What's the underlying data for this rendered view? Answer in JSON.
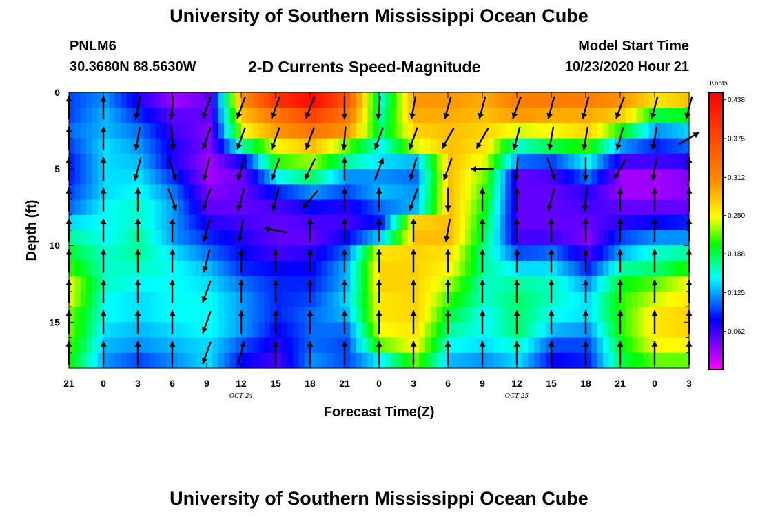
{
  "header": {
    "title": "University of Southern Mississippi Ocean Cube",
    "station_id": "PNLM6",
    "station_coords": "30.3680N 88.5630W",
    "subtitle": "2-D Currents Speed-Magnitude",
    "model_start_label": "Model Start Time",
    "model_start_value": "10/23/2020 Hour 21"
  },
  "footer": {
    "title": "University of Southern Mississippi Ocean Cube"
  },
  "chart_data": {
    "type": "heatmap",
    "title": "2-D Currents Speed-Magnitude",
    "xlabel": "Forecast Time(Z)",
    "ylabel": "Depth (ft)",
    "x_tick_labels": [
      "21",
      "0",
      "3",
      "6",
      "9",
      "12",
      "15",
      "18",
      "21",
      "0",
      "3",
      "6",
      "9",
      "12",
      "15",
      "18",
      "21",
      "0",
      "3"
    ],
    "date_labels": [
      {
        "label": "OCT 24",
        "at_tick_index": 5
      },
      {
        "label": "OCT 25",
        "at_tick_index": 13
      }
    ],
    "y_ticks": [
      0,
      5,
      10,
      15
    ],
    "ylim": [
      0,
      18
    ],
    "colorbar": {
      "label": "Knots",
      "min": 0.0,
      "max": 0.45,
      "tick_labels": [
        "0.438",
        "0.375",
        "0.312",
        "0.250",
        "0.188",
        "0.125",
        "0.062"
      ],
      "tick_values": [
        0.438,
        0.375,
        0.312,
        0.25,
        0.188,
        0.125,
        0.062
      ]
    },
    "depth_rows_ft": [
      0.5,
      1.5,
      2.5,
      3.5,
      4.5,
      5.5,
      6.5,
      7.5,
      8.5,
      9.5,
      10.5,
      11.5,
      12.5,
      13.5,
      14.5,
      15.5,
      16.5,
      17.5
    ],
    "speed_knots_columns": [
      {
        "hour": 0,
        "speed": [
          0.1,
          0.1,
          0.11,
          0.1,
          0.09,
          0.09,
          0.1,
          0.11,
          0.14,
          0.17,
          0.19,
          0.21,
          0.24,
          0.24,
          0.22,
          0.22,
          0.21,
          0.2
        ]
      },
      {
        "hour": 3,
        "speed": [
          0.12,
          0.13,
          0.13,
          0.14,
          0.14,
          0.14,
          0.14,
          0.15,
          0.15,
          0.15,
          0.16,
          0.16,
          0.16,
          0.15,
          0.15,
          0.14,
          0.13,
          0.12
        ]
      },
      {
        "hour": 6,
        "speed": [
          0.07,
          0.09,
          0.11,
          0.12,
          0.13,
          0.14,
          0.15,
          0.16,
          0.16,
          0.17,
          0.17,
          0.16,
          0.15,
          0.14,
          0.14,
          0.13,
          0.12,
          0.1
        ]
      },
      {
        "hour": 9,
        "speed": [
          0.03,
          0.05,
          0.06,
          0.07,
          0.07,
          0.09,
          0.11,
          0.12,
          0.12,
          0.12,
          0.14,
          0.15,
          0.15,
          0.15,
          0.15,
          0.14,
          0.13,
          0.12
        ]
      },
      {
        "hour": 12,
        "speed": [
          0.05,
          0.05,
          0.04,
          0.04,
          0.03,
          0.03,
          0.04,
          0.05,
          0.07,
          0.09,
          0.11,
          0.13,
          0.14,
          0.15,
          0.15,
          0.15,
          0.14,
          0.14
        ]
      },
      {
        "hour": 15,
        "speed": [
          0.31,
          0.28,
          0.25,
          0.17,
          0.08,
          0.05,
          0.05,
          0.05,
          0.06,
          0.07,
          0.08,
          0.09,
          0.11,
          0.12,
          0.12,
          0.12,
          0.1,
          0.08
        ]
      },
      {
        "hour": 18,
        "speed": [
          0.4,
          0.33,
          0.3,
          0.25,
          0.21,
          0.15,
          0.09,
          0.06,
          0.05,
          0.05,
          0.06,
          0.08,
          0.09,
          0.09,
          0.09,
          0.08,
          0.07,
          0.06
        ]
      },
      {
        "hour": 21,
        "speed": [
          0.44,
          0.38,
          0.33,
          0.28,
          0.23,
          0.18,
          0.12,
          0.08,
          0.06,
          0.05,
          0.07,
          0.08,
          0.09,
          0.1,
          0.11,
          0.11,
          0.11,
          0.12
        ]
      },
      {
        "hour": 24,
        "speed": [
          0.36,
          0.33,
          0.3,
          0.22,
          0.17,
          0.12,
          0.1,
          0.07,
          0.06,
          0.08,
          0.11,
          0.13,
          0.13,
          0.14,
          0.13,
          0.11,
          0.1,
          0.1
        ]
      },
      {
        "hour": 27,
        "speed": [
          0.16,
          0.17,
          0.18,
          0.15,
          0.14,
          0.12,
          0.13,
          0.11,
          0.09,
          0.14,
          0.26,
          0.27,
          0.27,
          0.26,
          0.26,
          0.25,
          0.22,
          0.15
        ]
      },
      {
        "hour": 30,
        "speed": [
          0.3,
          0.29,
          0.27,
          0.24,
          0.13,
          0.11,
          0.12,
          0.13,
          0.27,
          0.28,
          0.27,
          0.27,
          0.27,
          0.27,
          0.27,
          0.26,
          0.25,
          0.22
        ]
      },
      {
        "hour": 33,
        "speed": [
          0.3,
          0.29,
          0.28,
          0.28,
          0.28,
          0.28,
          0.28,
          0.28,
          0.28,
          0.28,
          0.26,
          0.25,
          0.23,
          0.21,
          0.19,
          0.17,
          0.15,
          0.13
        ]
      },
      {
        "hour": 36,
        "speed": [
          0.29,
          0.28,
          0.27,
          0.26,
          0.24,
          0.22,
          0.21,
          0.2,
          0.19,
          0.18,
          0.17,
          0.17,
          0.16,
          0.16,
          0.15,
          0.15,
          0.14,
          0.12
        ]
      },
      {
        "hour": 39,
        "speed": [
          0.32,
          0.3,
          0.24,
          0.16,
          0.11,
          0.05,
          0.05,
          0.05,
          0.05,
          0.06,
          0.1,
          0.14,
          0.17,
          0.18,
          0.18,
          0.18,
          0.16,
          0.14
        ]
      },
      {
        "hour": 42,
        "speed": [
          0.32,
          0.29,
          0.25,
          0.19,
          0.1,
          0.06,
          0.05,
          0.05,
          0.05,
          0.06,
          0.11,
          0.14,
          0.16,
          0.16,
          0.15,
          0.13,
          0.1,
          0.08
        ]
      },
      {
        "hour": 45,
        "speed": [
          0.32,
          0.29,
          0.27,
          0.21,
          0.15,
          0.11,
          0.07,
          0.06,
          0.05,
          0.04,
          0.06,
          0.09,
          0.12,
          0.14,
          0.14,
          0.12,
          0.1,
          0.09
        ]
      },
      {
        "hour": 48,
        "speed": [
          0.3,
          0.27,
          0.2,
          0.12,
          0.06,
          0.03,
          0.03,
          0.05,
          0.07,
          0.1,
          0.13,
          0.17,
          0.2,
          0.21,
          0.21,
          0.21,
          0.2,
          0.19
        ]
      },
      {
        "hour": 51,
        "speed": [
          0.26,
          0.19,
          0.12,
          0.09,
          0.06,
          0.03,
          0.03,
          0.05,
          0.08,
          0.12,
          0.16,
          0.18,
          0.22,
          0.24,
          0.26,
          0.26,
          0.25,
          0.22
        ]
      },
      {
        "hour": 54,
        "speed": [
          0.28,
          0.2,
          0.14,
          0.11,
          0.07,
          0.04,
          0.04,
          0.05,
          0.09,
          0.12,
          0.17,
          0.21,
          0.25,
          0.26,
          0.27,
          0.27,
          0.25,
          0.22
        ]
      }
    ],
    "current_vectors_deg_cw_from_north": [
      {
        "col": 0,
        "dirs": [
          0,
          0,
          0,
          0,
          0,
          0,
          0,
          0,
          0
        ]
      },
      {
        "col": 1,
        "dirs": [
          0,
          0,
          0,
          0,
          0,
          0,
          0,
          0,
          0
        ]
      },
      {
        "col": 2,
        "dirs": [
          190,
          190,
          195,
          0,
          0,
          0,
          0,
          0,
          0
        ]
      },
      {
        "col": 3,
        "dirs": [
          185,
          175,
          160,
          160,
          0,
          0,
          0,
          0,
          0
        ]
      },
      {
        "col": 4,
        "dirs": [
          200,
          200,
          195,
          200,
          195,
          195,
          200,
          200,
          200
        ]
      },
      {
        "col": 5,
        "dirs": [
          200,
          200,
          195,
          195,
          190,
          0,
          0,
          0,
          15
        ]
      },
      {
        "col": 6,
        "dirs": [
          200,
          200,
          200,
          195,
          280,
          0,
          0,
          0,
          0
        ]
      },
      {
        "col": 7,
        "dirs": [
          200,
          200,
          205,
          220,
          0,
          0,
          0,
          0,
          0
        ]
      },
      {
        "col": 8,
        "dirs": [
          180,
          185,
          0,
          0,
          0,
          0,
          0,
          0,
          0
        ]
      },
      {
        "col": 9,
        "dirs": [
          185,
          200,
          20,
          0,
          0,
          0,
          0,
          0,
          0
        ]
      },
      {
        "col": 10,
        "dirs": [
          190,
          200,
          195,
          200,
          0,
          0,
          0,
          0,
          0
        ]
      },
      {
        "col": 11,
        "dirs": [
          195,
          210,
          200,
          180,
          190,
          0,
          0,
          0,
          0
        ]
      },
      {
        "col": 12,
        "dirs": [
          195,
          210,
          270,
          0,
          0,
          0,
          0,
          0,
          0
        ]
      },
      {
        "col": 13,
        "dirs": [
          200,
          195,
          185,
          0,
          0,
          0,
          0,
          0,
          0
        ]
      },
      {
        "col": 14,
        "dirs": [
          195,
          190,
          160,
          195,
          0,
          0,
          0,
          0,
          0
        ]
      },
      {
        "col": 15,
        "dirs": [
          195,
          190,
          180,
          185,
          0,
          0,
          0,
          0,
          0
        ]
      },
      {
        "col": 16,
        "dirs": [
          200,
          195,
          210,
          0,
          0,
          0,
          0,
          0,
          0
        ]
      },
      {
        "col": 17,
        "dirs": [
          195,
          190,
          190,
          0,
          0,
          0,
          0,
          0,
          0
        ]
      },
      {
        "col": 18,
        "dirs": [
          195,
          60,
          0,
          0,
          0,
          0,
          0,
          0,
          0
        ]
      }
    ]
  }
}
